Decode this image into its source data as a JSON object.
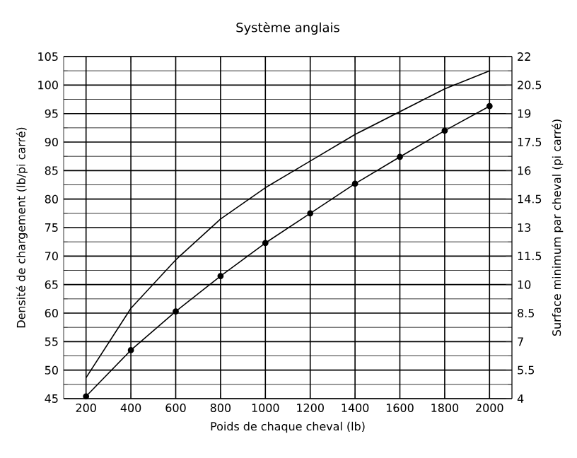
{
  "chart_data": {
    "type": "line",
    "title": "Système anglais",
    "xlabel": "Poids de chaque cheval (lb)",
    "ylabel": "Densité de chargement (lb/pi carré)",
    "y2label": "Surface minimum par cheval (pi carré)",
    "x": [
      200,
      400,
      600,
      800,
      1000,
      1200,
      1400,
      1600,
      1800,
      2000
    ],
    "series": [
      {
        "color": "#000000",
        "marker": "circle",
        "values": [
          45.4,
          53.5,
          60.3,
          66.5,
          72.3,
          77.5,
          82.7,
          87.4,
          92,
          96.3
        ]
      },
      {
        "color": "#000000",
        "marker": "none",
        "axis": "y2",
        "values": [
          5.1,
          8.75,
          11.3,
          13.45,
          15.1,
          16.5,
          17.9,
          19.1,
          20.3,
          21.25
        ]
      }
    ],
    "xlim": [
      100,
      2100
    ],
    "xticks": [
      200,
      400,
      600,
      800,
      1000,
      1200,
      1400,
      1600,
      1800,
      2000
    ],
    "ylim": [
      45,
      105
    ],
    "yticks": [
      45,
      50,
      55,
      60,
      65,
      70,
      75,
      80,
      85,
      90,
      95,
      100,
      105
    ],
    "y2lim": [
      4,
      22
    ],
    "y2ticks": [
      4,
      5.5,
      7,
      8.5,
      10,
      11.5,
      13,
      14.5,
      16,
      17.5,
      19,
      20.5,
      22
    ],
    "grid": true
  }
}
